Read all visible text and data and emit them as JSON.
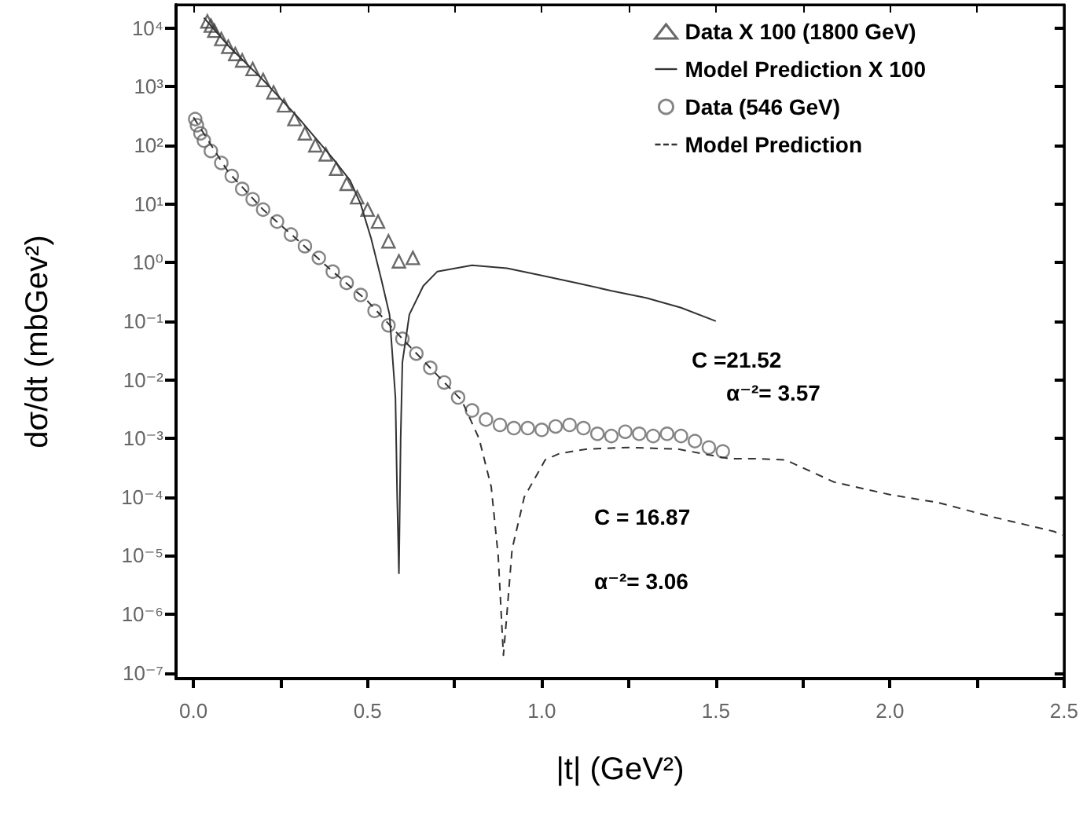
{
  "chart_data": {
    "type": "scatter",
    "xlabel": "|t| (GeV²)",
    "ylabel": "dσ/dt (mbGev²)",
    "log": "y",
    "grid": false,
    "legend": "top right",
    "xlim": [
      -0.05,
      2.5
    ],
    "xticks": [
      {
        "value": 0,
        "label": "0.0"
      },
      {
        "value": 0.25,
        "label": null
      },
      {
        "value": 0.5,
        "label": "0.5"
      },
      {
        "value": 0.75,
        "label": null
      },
      {
        "value": 1,
        "label": "1.0"
      },
      {
        "value": 1.25,
        "label": null
      },
      {
        "value": 1.5,
        "label": "1.5"
      },
      {
        "value": 1.75,
        "label": null
      },
      {
        "value": 2,
        "label": "2.0"
      },
      {
        "value": 2.25,
        "label": null
      },
      {
        "value": 2.5,
        "label": "2.5"
      }
    ],
    "ylim": [
      8e-08,
      25000
    ],
    "yticks": [
      {
        "value": 1e-07,
        "label": "10⁻⁷"
      },
      {
        "value": 1e-06,
        "label": "10⁻⁶"
      },
      {
        "value": 1e-05,
        "label": "10⁻⁵"
      },
      {
        "value": 0.0001,
        "label": "10⁻⁴"
      },
      {
        "value": 0.001,
        "label": "10⁻³"
      },
      {
        "value": 0.01,
        "label": "10⁻²"
      },
      {
        "value": 0.1,
        "label": "10⁻¹"
      },
      {
        "value": 1,
        "label": "10⁰"
      },
      {
        "value": 10,
        "label": "10¹"
      },
      {
        "value": 100,
        "label": "10²"
      },
      {
        "value": 1000,
        "label": "10³"
      },
      {
        "value": 10000,
        "label": "10⁴"
      }
    ],
    "series": [
      {
        "name": "Data X 100 (1800 GeV)",
        "marker": "triangle",
        "color": "#444444",
        "x": [
          0.04,
          0.05,
          0.06,
          0.08,
          0.1,
          0.12,
          0.14,
          0.17,
          0.2,
          0.23,
          0.26,
          0.29,
          0.32,
          0.35,
          0.38,
          0.41,
          0.44,
          0.47,
          0.5,
          0.53,
          0.56,
          0.59,
          0.63
        ],
        "values": [
          13000,
          11000,
          9000,
          6500,
          4800,
          3600,
          2800,
          2000,
          1300,
          800,
          480,
          280,
          160,
          100,
          70,
          40,
          22,
          13,
          8,
          5,
          2.3,
          1.05,
          1.2
        ]
      },
      {
        "name": "Model Prediction X 100",
        "type": "line",
        "line_style": "solid",
        "marker": "none",
        "color": "#333333",
        "x": [
          0.03,
          0.1,
          0.2,
          0.3,
          0.4,
          0.45,
          0.48,
          0.51,
          0.54,
          0.563,
          0.58,
          0.585,
          0.59,
          0.595,
          0.6,
          0.62,
          0.66,
          0.7,
          0.8,
          0.9,
          1.0,
          1.1,
          1.2,
          1.3,
          1.4,
          1.5
        ],
        "values": [
          15000,
          5000,
          1300,
          300,
          60,
          25,
          10,
          2.6,
          0.5,
          0.13,
          0.005,
          0.0001,
          5e-06,
          0.001,
          0.02,
          0.13,
          0.4,
          0.7,
          0.9,
          0.8,
          0.6,
          0.45,
          0.33,
          0.25,
          0.17,
          0.1
        ]
      },
      {
        "name": "Data (546 GeV)",
        "marker": "circle",
        "color": "#666666",
        "x": [
          0.005,
          0.01,
          0.02,
          0.03,
          0.05,
          0.08,
          0.11,
          0.14,
          0.17,
          0.2,
          0.24,
          0.28,
          0.32,
          0.36,
          0.4,
          0.44,
          0.48,
          0.52,
          0.56,
          0.6,
          0.64,
          0.68,
          0.72,
          0.76,
          0.8,
          0.84,
          0.88,
          0.92,
          0.96,
          1.0,
          1.04,
          1.08,
          1.12,
          1.16,
          1.2,
          1.24,
          1.28,
          1.32,
          1.36,
          1.4,
          1.44,
          1.48,
          1.52
        ],
        "values": [
          280,
          220,
          160,
          120,
          80,
          50,
          30,
          18,
          12,
          8,
          5,
          3,
          1.9,
          1.2,
          0.7,
          0.45,
          0.28,
          0.15,
          0.085,
          0.05,
          0.028,
          0.016,
          0.009,
          0.005,
          0.003,
          0.0021,
          0.0017,
          0.0015,
          0.0015,
          0.0014,
          0.0016,
          0.0017,
          0.0015,
          0.0012,
          0.0011,
          0.0013,
          0.0012,
          0.0011,
          0.0012,
          0.0011,
          0.0009,
          0.0007,
          0.0006
        ]
      },
      {
        "name": "Model Prediction",
        "type": "line",
        "line_style": "dashed",
        "marker": "none",
        "color": "#333333",
        "x": [
          0.0,
          0.1,
          0.2,
          0.3,
          0.4,
          0.5,
          0.6,
          0.7,
          0.77,
          0.82,
          0.855,
          0.875,
          0.89,
          0.9,
          0.915,
          0.95,
          1.01,
          1.05,
          1.13,
          1.25,
          1.39,
          1.54,
          1.62,
          1.7,
          1.84,
          2.0,
          2.14,
          2.3,
          2.47,
          2.5
        ],
        "values": [
          300,
          35,
          8,
          2.4,
          0.7,
          0.22,
          0.05,
          0.012,
          0.0045,
          0.001,
          0.00015,
          1e-05,
          2e-07,
          1e-06,
          1.3e-05,
          0.0001,
          0.00043,
          0.00055,
          0.00066,
          0.0007,
          0.00066,
          0.00045,
          0.00045,
          0.00043,
          0.00018,
          0.00011,
          8e-05,
          4.5e-05,
          2.6e-05,
          2.2e-05
        ]
      }
    ],
    "annotations": [
      "C =21.52",
      "α⁻²= 3.57",
      "C = 16.87",
      "α⁻²= 3.06"
    ]
  }
}
